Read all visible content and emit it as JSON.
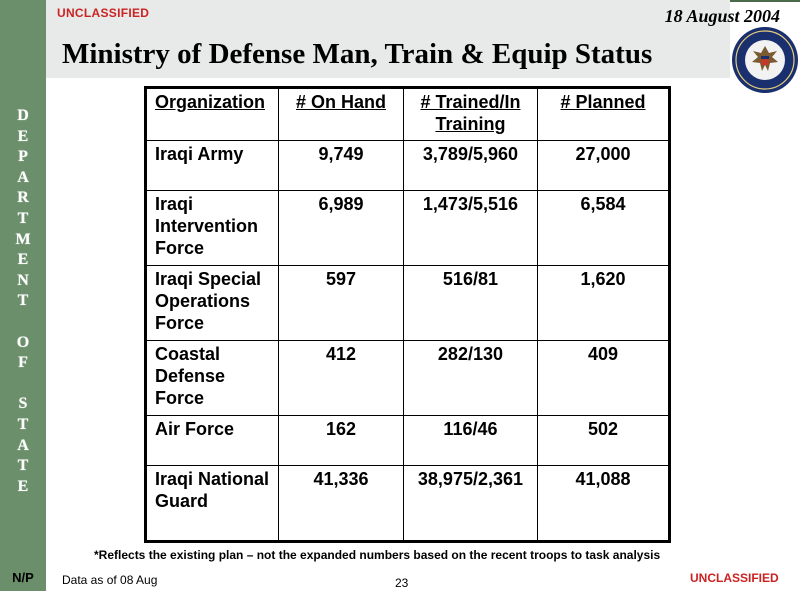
{
  "header": {
    "classification": "UNCLASSIFIED",
    "date": "18 August 2004",
    "title": "Ministry of Defense Man, Train & Equip Status"
  },
  "sidebar": {
    "letters": [
      "D",
      "E",
      "P",
      "A",
      "R",
      "T",
      "M",
      "E",
      "N",
      "T",
      "",
      "O",
      "F",
      "",
      "S",
      "T",
      "A",
      "T",
      "E"
    ],
    "np": "N/P"
  },
  "table": {
    "headers": {
      "organization": "Organization",
      "on_hand": "# On Hand",
      "trained": "# Trained/In Training",
      "planned": "# Planned"
    },
    "rows": [
      {
        "org": "Iraqi Army",
        "on_hand": "9,749",
        "trained": "3,789/5,960",
        "planned": "27,000"
      },
      {
        "org": "Iraqi Intervention Force",
        "on_hand": "6,989",
        "trained": "1,473/5,516",
        "planned": "6,584"
      },
      {
        "org": "Iraqi Special Operations Force",
        "on_hand": "597",
        "trained": "516/81",
        "planned": "1,620"
      },
      {
        "org": "Coastal Defense Force",
        "on_hand": "412",
        "trained": "282/130",
        "planned": "409"
      },
      {
        "org": "Air Force",
        "on_hand": "162",
        "trained": "116/46",
        "planned": "502"
      },
      {
        "org": "Iraqi National Guard",
        "on_hand": "41,336",
        "trained": "38,975/2,361",
        "planned": "41,088"
      }
    ]
  },
  "footer": {
    "footnote": "*Reflects the existing plan – not the expanded numbers based on the recent troops to task analysis",
    "data_as_of": "Data as of 08 Aug",
    "page_number": "23",
    "classification": "UNCLASSIFIED"
  },
  "colors": {
    "sidebar": "#6b8f6b",
    "title_bar": "#e8eaea",
    "classification_red": "#cc2222"
  },
  "icons": {
    "seal": "department-of-state-seal-icon"
  }
}
